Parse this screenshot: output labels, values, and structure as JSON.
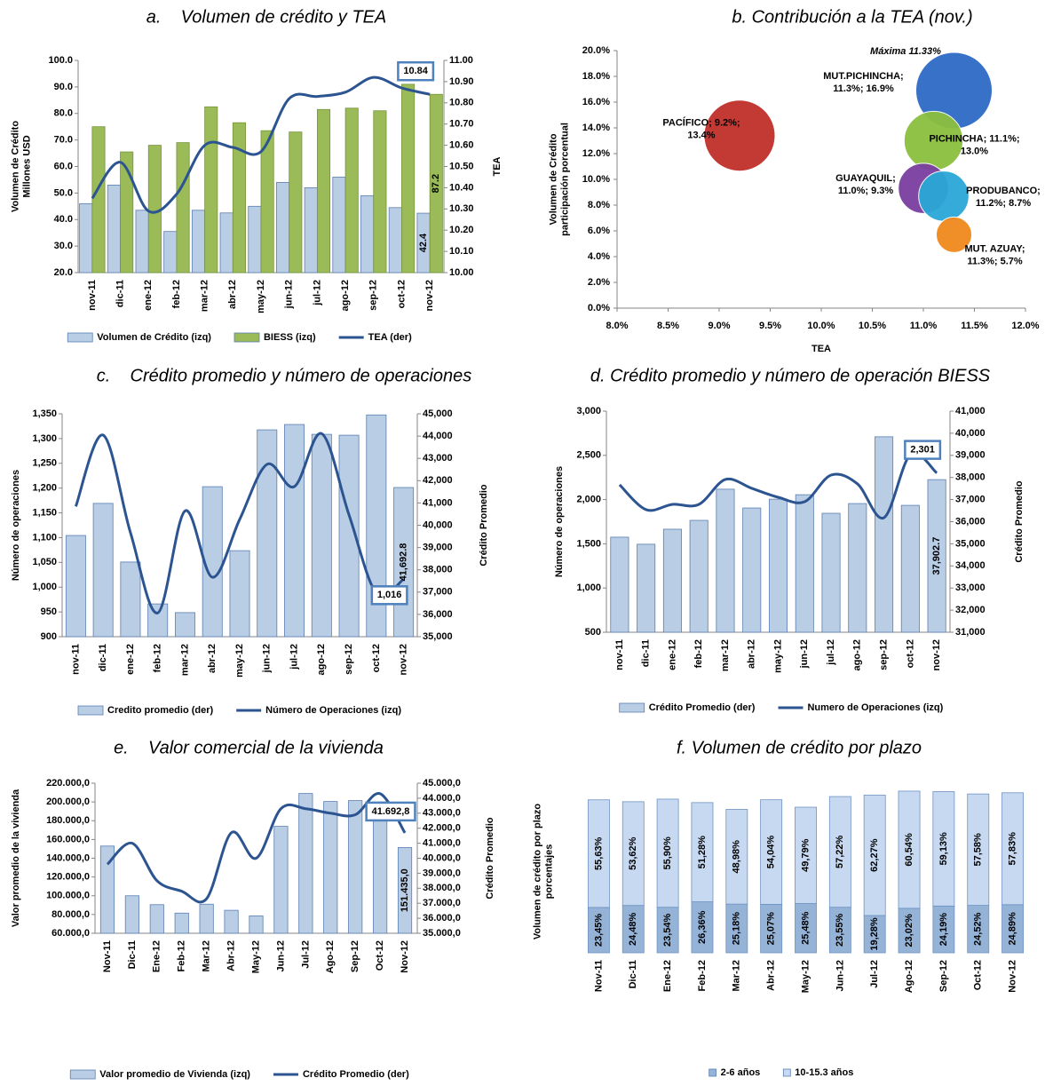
{
  "chart_data": [
    {
      "type": "combo",
      "title": "a.    Volumen de crédito y TEA",
      "y_label": [
        "Volumen de Crédito",
        "Millones USD"
      ],
      "y2_label": "TEA",
      "categories": [
        "nov-11",
        "dic-11",
        "ene-12",
        "feb-12",
        "mar-12",
        "abr-12",
        "may-12",
        "jun-12",
        "jul-12",
        "ago-12",
        "sep-12",
        "oct-12",
        "nov-12"
      ],
      "ylim": [
        20,
        100
      ],
      "yticks": [
        {
          "value": 20,
          "label": "20.0"
        },
        {
          "value": 30,
          "label": "30.0"
        },
        {
          "value": 40,
          "label": "40.0"
        },
        {
          "value": 50,
          "label": "50.0"
        },
        {
          "value": 60,
          "label": "60.0"
        },
        {
          "value": 70,
          "label": "70.0"
        },
        {
          "value": 80,
          "label": "80.0"
        },
        {
          "value": 90,
          "label": "90.0"
        },
        {
          "value": 100,
          "label": "100.0"
        }
      ],
      "y2lim": [
        10,
        11
      ],
      "y2ticks": [
        {
          "value": 10,
          "label": "10.00"
        },
        {
          "value": 10.1,
          "label": "10.10"
        },
        {
          "value": 10.2,
          "label": "10.20"
        },
        {
          "value": 10.3,
          "label": "10.30"
        },
        {
          "value": 10.4,
          "label": "10.40"
        },
        {
          "value": 10.5,
          "label": "10.50"
        },
        {
          "value": 10.6,
          "label": "10.60"
        },
        {
          "value": 10.7,
          "label": "10.70"
        },
        {
          "value": 10.8,
          "label": "10.80"
        },
        {
          "value": 10.9,
          "label": "10.90"
        },
        {
          "value": 11,
          "label": "11.00"
        }
      ],
      "grid": false,
      "series": [
        {
          "name": "Volumen de Crédito (izq)",
          "kind": "bar",
          "color": "#b9cde5",
          "values": [
            46,
            53,
            43.5,
            35.5,
            43.5,
            42.5,
            45,
            54,
            52,
            56,
            49,
            44.5,
            42.4
          ],
          "data_labels": "last"
        },
        {
          "name": "BIESS (izq)",
          "kind": "bar",
          "color": "#9bbb59",
          "values": [
            75,
            65.5,
            68,
            69,
            82.5,
            76.5,
            73.5,
            73,
            81.5,
            82,
            81,
            91,
            87.2
          ],
          "data_labels": "last"
        },
        {
          "name": "TEA (der)",
          "kind": "line",
          "axis": "y2",
          "color": "#2c5491",
          "values": [
            10.35,
            10.52,
            10.29,
            10.37,
            10.6,
            10.59,
            10.57,
            10.82,
            10.83,
            10.85,
            10.92,
            10.87,
            10.84
          ],
          "data_labels": "last"
        }
      ]
    },
    {
      "type": "bubble",
      "title": "b. Contribución a la TEA (nov.)",
      "x_label": "TEA",
      "y_label": [
        "Volumen de Crédito",
        "participación porcentual"
      ],
      "xlim": [
        8,
        12
      ],
      "xticks": [
        {
          "value": 8,
          "label": "8.0%"
        },
        {
          "value": 8.5,
          "label": "8.5%"
        },
        {
          "value": 9,
          "label": "9.0%"
        },
        {
          "value": 9.5,
          "label": "9.5%"
        },
        {
          "value": 10,
          "label": "10.0%"
        },
        {
          "value": 10.5,
          "label": "10.5%"
        },
        {
          "value": 11,
          "label": "11.0%"
        },
        {
          "value": 11.5,
          "label": "11.5%"
        },
        {
          "value": 12,
          "label": "12.0%"
        }
      ],
      "ylim": [
        0,
        20
      ],
      "yticks": [
        {
          "value": 0,
          "label": "0.0%"
        },
        {
          "value": 2,
          "label": "2.0%"
        },
        {
          "value": 4,
          "label": "4.0%"
        },
        {
          "value": 6,
          "label": "6.0%"
        },
        {
          "value": 8,
          "label": "8.0%"
        },
        {
          "value": 10,
          "label": "10.0%"
        },
        {
          "value": 12,
          "label": "12.0%"
        },
        {
          "value": 14,
          "label": "14.0%"
        },
        {
          "value": 16,
          "label": "16.0%"
        },
        {
          "value": 18,
          "label": "18.0%"
        },
        {
          "value": 20,
          "label": "20.0%"
        }
      ],
      "x": [
        9.2,
        11.3,
        11.1,
        11.0,
        11.2,
        11.3
      ],
      "y": [
        13.4,
        16.9,
        13.0,
        9.3,
        8.7,
        5.7
      ],
      "sizes": [
        16,
        18.5,
        11,
        8,
        8,
        4
      ],
      "colors": [
        "#c0302b",
        "#2e6bc6",
        "#8cbf3f",
        "#7a3fa0",
        "#2aa7d6",
        "#f08a1c"
      ],
      "point_labels": [
        [
          "PACÍFICO; 9.2%;",
          "13.4%"
        ],
        [
          "MUT.PICHINCHA;",
          "11.3%; 16.9%"
        ],
        [
          "PICHINCHA; 11.1%;",
          "13.0%"
        ],
        [
          "GUAYAQUIL;",
          "11.0%; 9.3%"
        ],
        [
          "PRODUBANCO;",
          "11.2%; 8.7%"
        ],
        [
          "MUT. AZUAY;",
          "11.3%; 5.7%"
        ]
      ],
      "annotation": "Máxima 11.33%",
      "annotation_color": "#ff0000"
    },
    {
      "type": "combo",
      "title": "c.    Crédito promedio y número de operaciones",
      "y_label": "Número de operaciones",
      "y2_label": "Crédito Promedio",
      "categories": [
        "nov-11",
        "dic-11",
        "ene-12",
        "feb-12",
        "mar-12",
        "abr-12",
        "may-12",
        "jun-12",
        "jul-12",
        "ago-12",
        "sep-12",
        "oct-12",
        "nov-12"
      ],
      "ylim": [
        900,
        1350
      ],
      "yticks": [
        900,
        950,
        {
          "value": 1000,
          "label": "1,000"
        },
        {
          "value": 1050,
          "label": "1,050"
        },
        {
          "value": 1100,
          "label": "1,100"
        },
        {
          "value": 1150,
          "label": "1,150"
        },
        {
          "value": 1200,
          "label": "1,200"
        },
        {
          "value": 1250,
          "label": "1,250"
        },
        {
          "value": 1300,
          "label": "1,300"
        },
        {
          "value": 1350,
          "label": "1,350"
        }
      ],
      "y2lim": [
        35000,
        45000
      ],
      "y2ticks": [
        {
          "value": 35000,
          "label": "35,000"
        },
        {
          "value": 36000,
          "label": "36,000"
        },
        {
          "value": 37000,
          "label": "37,000"
        },
        {
          "value": 38000,
          "label": "38,000"
        },
        {
          "value": 39000,
          "label": "39,000"
        },
        {
          "value": 40000,
          "label": "40,000"
        },
        {
          "value": 41000,
          "label": "41,000"
        },
        {
          "value": 42000,
          "label": "42,000"
        },
        {
          "value": 43000,
          "label": "43,000"
        },
        {
          "value": 44000,
          "label": "44,000"
        },
        {
          "value": 45000,
          "label": "45,000"
        }
      ],
      "grid": false,
      "series": [
        {
          "name": "Credito promedio (der)",
          "kind": "bar",
          "axis": "y2",
          "color": "#b9cde5",
          "values": [
            39540,
            40980,
            38350,
            36470,
            36080,
            41730,
            38860,
            44280,
            44520,
            44080,
            44040,
            44950,
            41692.8
          ],
          "value_labels": [
            null,
            null,
            null,
            null,
            null,
            null,
            null,
            null,
            null,
            null,
            null,
            null,
            "41,692.8"
          ]
        },
        {
          "name": "Número de Operaciones (izq)",
          "kind": "line",
          "color": "#2c5491",
          "values": [
            1163,
            1307,
            1110,
            948,
            1154,
            1020,
            1137,
            1248,
            1203,
            1310,
            1146,
            988,
            1016
          ],
          "value_labels": [
            null,
            null,
            null,
            null,
            null,
            null,
            null,
            null,
            null,
            null,
            null,
            null,
            "1,016"
          ]
        }
      ]
    },
    {
      "type": "combo",
      "title": "d. Crédito promedio y número de operación BIESS",
      "y_label": "Número de operaciones",
      "y2_label": "Crédito Promedio",
      "categories": [
        "nov-11",
        "dic-11",
        "ene-12",
        "feb-12",
        "mar-12",
        "abr-12",
        "may-12",
        "jun-12",
        "jul-12",
        "ago-12",
        "sep-12",
        "oct-12",
        "nov-12"
      ],
      "ylim": [
        500,
        3000
      ],
      "yticks": [
        500,
        {
          "value": 1000,
          "label": "1,000"
        },
        {
          "value": 1500,
          "label": "1,500"
        },
        {
          "value": 2000,
          "label": "2,000"
        },
        {
          "value": 2500,
          "label": "2,500"
        },
        {
          "value": 3000,
          "label": "3,000"
        }
      ],
      "y2lim": [
        31000,
        41000
      ],
      "y2ticks": [
        {
          "value": 31000,
          "label": "31,000"
        },
        {
          "value": 32000,
          "label": "32,000"
        },
        {
          "value": 33000,
          "label": "33,000"
        },
        {
          "value": 34000,
          "label": "34,000"
        },
        {
          "value": 35000,
          "label": "35,000"
        },
        {
          "value": 36000,
          "label": "36,000"
        },
        {
          "value": 37000,
          "label": "37,000"
        },
        {
          "value": 38000,
          "label": "38,000"
        },
        {
          "value": 39000,
          "label": "39,000"
        },
        {
          "value": 40000,
          "label": "40,000"
        },
        {
          "value": 41000,
          "label": "41,000"
        }
      ],
      "grid": false,
      "series": [
        {
          "name": "Crédito Promedio (der)",
          "kind": "bar",
          "axis": "y2",
          "color": "#b9cde5",
          "values": [
            35300,
            34980,
            35660,
            36060,
            37470,
            36620,
            37020,
            37220,
            36380,
            36820,
            39840,
            36740,
            37902.7
          ],
          "value_labels": [
            null,
            null,
            null,
            null,
            null,
            null,
            null,
            null,
            null,
            null,
            null,
            null,
            "37,902.7"
          ]
        },
        {
          "name": "Numero de Operaciones (izq)",
          "kind": "line",
          "color": "#2c5491",
          "values": [
            2167,
            1886,
            1946,
            1946,
            2227,
            2127,
            2026,
            1976,
            2277,
            2177,
            1795,
            2508,
            2301
          ],
          "value_labels": [
            null,
            null,
            null,
            null,
            null,
            null,
            null,
            null,
            null,
            null,
            null,
            null,
            "2,301"
          ]
        }
      ]
    },
    {
      "type": "combo",
      "title": "e.    Valor comercial de la vivienda",
      "y_label": "Valor promedio de la vivienda",
      "y2_label": "Crédito Promedio",
      "categories": [
        "Nov-11",
        "Dic-11",
        "Ene-12",
        "Feb-12",
        "Mar-12",
        "Abr-12",
        "May-12",
        "Jun-12",
        "Jul-12",
        "Ago-12",
        "Sep-12",
        "Oct-12",
        "Nov-12"
      ],
      "ylim": [
        60000,
        220000
      ],
      "yticks": [
        {
          "value": 60000,
          "label": "60.000,0"
        },
        {
          "value": 80000,
          "label": "80.000,0"
        },
        {
          "value": 100000,
          "label": "100.000,0"
        },
        {
          "value": 120000,
          "label": "120.000,0"
        },
        {
          "value": 140000,
          "label": "140.000,0"
        },
        {
          "value": 160000,
          "label": "160.000,0"
        },
        {
          "value": 180000,
          "label": "180.000,0"
        },
        {
          "value": 200000,
          "label": "200.000,0"
        },
        {
          "value": 220000,
          "label": "220.000,0"
        }
      ],
      "y2lim": [
        35000,
        45000
      ],
      "y2ticks": [
        {
          "value": 35000,
          "label": "35.000,0"
        },
        {
          "value": 36000,
          "label": "36.000,0"
        },
        {
          "value": 37000,
          "label": "37.000,0"
        },
        {
          "value": 38000,
          "label": "38.000,0"
        },
        {
          "value": 39000,
          "label": "39.000,0"
        },
        {
          "value": 40000,
          "label": "40.000,0"
        },
        {
          "value": 41000,
          "label": "41.000,0"
        },
        {
          "value": 42000,
          "label": "42.000,0"
        },
        {
          "value": 43000,
          "label": "43.000,0"
        },
        {
          "value": 44000,
          "label": "44.000,0"
        },
        {
          "value": 45000,
          "label": "45.000,0"
        }
      ],
      "grid": false,
      "series": [
        {
          "name": "Valor promedio de Vivienda (izq)",
          "kind": "bar",
          "color": "#b9cde5",
          "values": [
            153000,
            100000,
            90500,
            81500,
            91000,
            84500,
            78500,
            174000,
            209000,
            200500,
            201500,
            200000,
            151435
          ],
          "value_labels": [
            null,
            null,
            null,
            null,
            null,
            null,
            null,
            null,
            null,
            null,
            null,
            null,
            "151.435,0"
          ]
        },
        {
          "name": "Crédito Promedio (der)",
          "kind": "line",
          "axis": "y2",
          "color": "#2c5491",
          "values": [
            39600,
            41000,
            38500,
            37800,
            37300,
            41700,
            40000,
            43300,
            43300,
            43000,
            42900,
            44300,
            41692.8
          ],
          "value_labels": [
            null,
            null,
            null,
            null,
            null,
            null,
            null,
            null,
            null,
            null,
            null,
            null,
            "41.692,8"
          ]
        }
      ]
    },
    {
      "type": "stacked",
      "title": "f. Volumen de crédito por plazo",
      "y_label": [
        "Volumen de crédito por plazo",
        "porcentajes"
      ],
      "categories": [
        "Nov-11",
        "Dic-11",
        "Ene-12",
        "Feb-12",
        "Mar-12",
        "Abr-12",
        "May-12",
        "Jun-12",
        "Jul-12",
        "Ago-12",
        "Sep-12",
        "Oct-12",
        "Nov-12"
      ],
      "ylim": [
        0,
        84
      ],
      "series": [
        {
          "name": "2-6 años",
          "color": "#95b3d7",
          "values": [
            23.45,
            24.48,
            23.54,
            26.36,
            25.18,
            25.07,
            25.48,
            23.55,
            19.28,
            23.02,
            24.19,
            24.52,
            24.89
          ],
          "value_labels": [
            "23,45%",
            "24,48%",
            "23,54%",
            "26,36%",
            "25,18%",
            "25,07%",
            "25,48%",
            "23,55%",
            "19,28%",
            "23,02%",
            "24,19%",
            "24,52%",
            "24,89%"
          ]
        },
        {
          "name": "10-15.3 años",
          "color": "#c6d9f1",
          "values": [
            55.63,
            53.62,
            55.9,
            51.28,
            48.98,
            54.04,
            49.79,
            57.22,
            62.27,
            60.54,
            59.13,
            57.58,
            57.83
          ],
          "value_labels": [
            "55,63%",
            "53,62%",
            "55,90%",
            "51,28%",
            "48,98%",
            "54,04%",
            "49,79%",
            "57,22%",
            "62,27%",
            "60,54%",
            "59,13%",
            "57,58%",
            "57,83%"
          ]
        }
      ]
    }
  ]
}
